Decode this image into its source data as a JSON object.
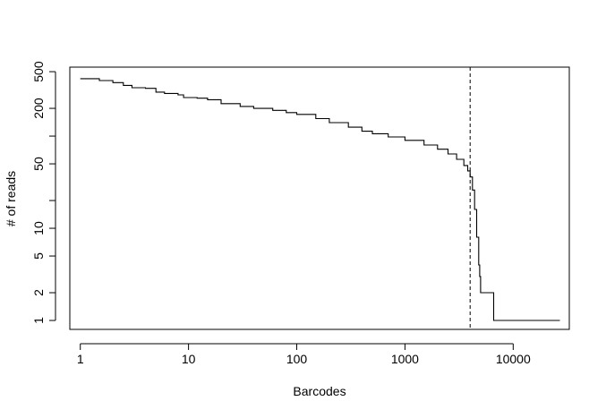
{
  "chart_data": {
    "type": "line",
    "title": "",
    "xlabel": "Barcodes",
    "ylabel": "# of reads",
    "x_scale": "log",
    "y_scale": "log",
    "xlim": [
      0.8,
      33000
    ],
    "ylim": [
      0.8,
      560
    ],
    "x_ticks": [
      {
        "value": 1,
        "label": "1"
      },
      {
        "value": 10,
        "label": "10"
      },
      {
        "value": 100,
        "label": "100"
      },
      {
        "value": 1000,
        "label": "1000"
      },
      {
        "value": 10000,
        "label": "10000"
      }
    ],
    "y_ticks": [
      {
        "value": 1,
        "label": "1"
      },
      {
        "value": 2,
        "label": "2"
      },
      {
        "value": 5,
        "label": "5"
      },
      {
        "value": 10,
        "label": "10"
      },
      {
        "value": 20,
        "label": ""
      },
      {
        "value": 50,
        "label": "50"
      },
      {
        "value": 100,
        "label": ""
      },
      {
        "value": 200,
        "label": "200"
      },
      {
        "value": 500,
        "label": "500"
      }
    ],
    "grid": false,
    "legend": "none",
    "series": [
      {
        "line_style": "step",
        "color": "#000000",
        "x": [
          1,
          1.5,
          2,
          2.5,
          3,
          4,
          5,
          6,
          8,
          9,
          12,
          15,
          20,
          30,
          40,
          60,
          80,
          100,
          150,
          200,
          300,
          400,
          500,
          700,
          1000,
          1500,
          2000,
          2500,
          3000,
          3500,
          3800,
          4000,
          4200,
          4400,
          4600,
          4800,
          4900,
          5000,
          5200,
          6000,
          6500,
          6600,
          8000,
          12000,
          20000,
          27000
        ],
        "y": [
          420,
          400,
          380,
          355,
          335,
          330,
          300,
          290,
          280,
          262,
          258,
          248,
          225,
          210,
          200,
          190,
          180,
          172,
          155,
          140,
          125,
          113,
          106,
          98,
          90,
          80,
          72,
          64,
          56,
          48,
          42,
          36,
          26,
          16,
          8,
          4,
          3,
          2,
          2,
          2,
          2,
          1,
          1,
          1,
          1,
          1
        ]
      }
    ],
    "annotations": [
      {
        "type": "vline",
        "x": 4000,
        "style": "dashed"
      }
    ]
  }
}
